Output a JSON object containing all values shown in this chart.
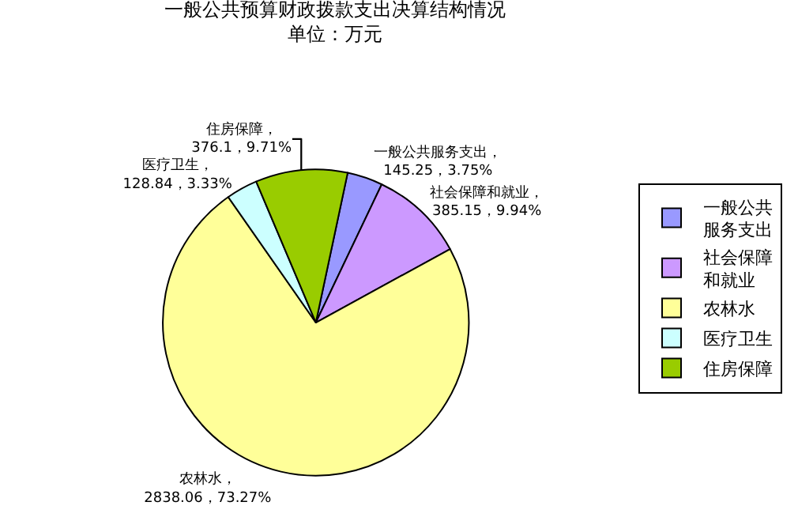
{
  "chart_data": {
    "type": "pie",
    "title": "一般公共预算财政拨款支出决算结构情况",
    "subtitle": "单位：万元",
    "categories": [
      "一般公共服务支出",
      "社会保障和就业",
      "农林水",
      "医疗卫生",
      "住房保障"
    ],
    "values": [
      145.25,
      385.15,
      2838.06,
      128.84,
      376.1
    ],
    "colors": [
      "#9999ff",
      "#cc99ff",
      "#ffff99",
      "#ccffff",
      "#99cc00"
    ],
    "value_labels": [
      "一般公共服务支出，145.25，3.75%",
      "社会保障和就业，385.15，9.94%",
      "农林水，2838.06，73.27%",
      "医疗卫生，128.84，3.33%",
      "住房保障，376.1，9.71%"
    ],
    "legend": "right"
  }
}
